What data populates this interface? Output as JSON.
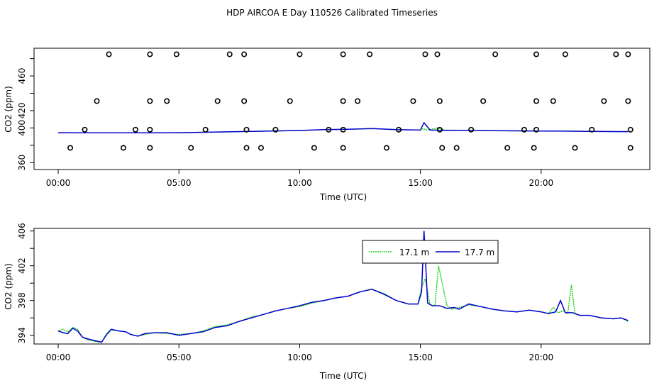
{
  "title": "HDP AIRCOA E  Day 110526  Calibrated Timeseries",
  "colors": {
    "green": "#00cc00",
    "blue": "#0000cc",
    "axis": "#000000"
  },
  "chart_data": [
    {
      "type": "line+scatter",
      "xlabel": "Time (UTC)",
      "ylabel": "CO2 (ppm)",
      "xlim": [
        -1.0,
        24.5
      ],
      "ylim": [
        352,
        492
      ],
      "xticks": [
        0,
        5,
        10,
        15,
        20
      ],
      "xtick_labels": [
        "00:00",
        "05:00",
        "10:00",
        "15:00",
        "20:00"
      ],
      "yticks": [
        360,
        380,
        400,
        420,
        440,
        460,
        480
      ],
      "ytick_labels": [
        "360",
        "",
        "400",
        "420",
        "",
        "460",
        ""
      ],
      "series": [
        {
          "color": "green",
          "kind": "line",
          "x": [
            0,
            1,
            2,
            3,
            4,
            5,
            6,
            7,
            8,
            9,
            10,
            11,
            12,
            13,
            14,
            15,
            15.1,
            15.3,
            15.7,
            16,
            17,
            18,
            19,
            20,
            21,
            22,
            23,
            23.6
          ],
          "y": [
            394.5,
            394.5,
            394.4,
            394.3,
            394.3,
            394.5,
            395,
            395.5,
            396,
            396.5,
            397,
            398,
            398.5,
            399.2,
            398,
            397.5,
            399,
            397.5,
            400,
            397.5,
            397.3,
            396.8,
            396.6,
            396.4,
            396.3,
            396,
            395.8,
            395.7
          ]
        },
        {
          "color": "blue",
          "kind": "line",
          "x": [
            0,
            1,
            2,
            3,
            4,
            5,
            6,
            7,
            8,
            9,
            10,
            11,
            12,
            13,
            14,
            15,
            15.15,
            15.4,
            16,
            17,
            18,
            19,
            20,
            21,
            22,
            23,
            23.6
          ],
          "y": [
            394.5,
            394.4,
            394.3,
            394.3,
            394.3,
            394.5,
            395,
            395.5,
            396,
            396.5,
            397,
            398,
            398.5,
            399.2,
            398,
            397.5,
            406,
            397.5,
            397.3,
            397.3,
            396.8,
            396.6,
            396.4,
            396.3,
            396,
            395.8,
            395.7
          ]
        },
        {
          "color": "black",
          "kind": "points",
          "x": [
            2.1,
            3.8,
            4.9,
            7.1,
            7.7,
            10.0,
            11.8,
            12.9,
            15.2,
            15.7,
            18.1,
            19.8,
            21.0,
            23.1,
            23.6,
            1.6,
            3.8,
            4.5,
            6.6,
            7.7,
            9.6,
            11.8,
            12.4,
            14.7,
            15.8,
            17.6,
            19.8,
            20.5,
            22.6,
            23.6,
            1.1,
            3.2,
            3.8,
            6.1,
            7.8,
            9.0,
            11.2,
            11.8,
            14.1,
            15.8,
            17.1,
            19.3,
            19.8,
            22.1,
            23.7,
            0.5,
            2.7,
            3.8,
            5.5,
            7.8,
            8.4,
            10.6,
            11.8,
            13.6,
            15.9,
            16.5,
            18.6,
            19.7,
            21.4,
            23.7
          ],
          "y": [
            485,
            485,
            485,
            485,
            485,
            485,
            485,
            485,
            485,
            485,
            485,
            485,
            485,
            485,
            485,
            431,
            431,
            431,
            431,
            431,
            431,
            431,
            431,
            431,
            431,
            431,
            431,
            431,
            431,
            431,
            398,
            398,
            398,
            398,
            398,
            398,
            398,
            398,
            398,
            398,
            398,
            398,
            398,
            398,
            398,
            377,
            377,
            377,
            377,
            377,
            377,
            377,
            377,
            377,
            377,
            377,
            377,
            377,
            377,
            377
          ]
        }
      ]
    },
    {
      "type": "line",
      "xlabel": "Time (UTC)",
      "ylabel": "CO2 (ppm)",
      "xlim": [
        -1.0,
        24.5
      ],
      "ylim": [
        393.0,
        406.3
      ],
      "xticks": [
        0,
        5,
        10,
        15,
        20
      ],
      "xtick_labels": [
        "00:00",
        "05:00",
        "10:00",
        "15:00",
        "20:00"
      ],
      "yticks": [
        394,
        396,
        398,
        400,
        402,
        404,
        406
      ],
      "ytick_labels": [
        "394",
        "",
        "398",
        "",
        "402",
        "",
        "406"
      ],
      "legend": {
        "position": "top-right",
        "items": [
          {
            "label": "17.1 m",
            "color": "green"
          },
          {
            "label": "17.7 m",
            "color": "blue"
          }
        ]
      },
      "series": [
        {
          "name": "17.1 m",
          "color": "green",
          "x": [
            0,
            0.2,
            0.4,
            0.6,
            0.8,
            1.0,
            1.2,
            1.5,
            1.8,
            2.0,
            2.2,
            2.5,
            2.8,
            3.0,
            3.3,
            3.6,
            4.0,
            4.5,
            5.0,
            5.5,
            6.0,
            6.5,
            7.0,
            7.5,
            8.0,
            8.5,
            9.0,
            9.5,
            10.0,
            10.5,
            11.0,
            11.5,
            12.0,
            12.5,
            13.0,
            13.5,
            14.0,
            14.5,
            14.9,
            15.05,
            15.2,
            15.4,
            15.6,
            15.75,
            15.9,
            16.1,
            16.3,
            16.6,
            17.0,
            17.5,
            18.0,
            18.5,
            19.0,
            19.5,
            20.0,
            20.3,
            20.5,
            20.7,
            20.9,
            21.1,
            21.25,
            21.4,
            21.6,
            22.0,
            22.5,
            23.0,
            23.3,
            23.6
          ],
          "y": [
            394.5,
            394.7,
            394.4,
            394.9,
            394.7,
            393.8,
            393.5,
            393.3,
            393.2,
            394.0,
            394.6,
            394.5,
            394.4,
            394.1,
            393.9,
            394.1,
            394.3,
            394.2,
            394.1,
            394.2,
            394.5,
            395.0,
            395.2,
            395.6,
            396.1,
            396.4,
            396.8,
            397.1,
            397.3,
            397.7,
            398.0,
            398.3,
            398.5,
            399.0,
            399.3,
            398.8,
            398.0,
            397.6,
            397.6,
            399.5,
            400.5,
            397.5,
            397.4,
            402.0,
            400.0,
            397.4,
            397.0,
            397.2,
            397.5,
            397.3,
            397.0,
            396.8,
            396.7,
            396.9,
            396.7,
            396.5,
            397.2,
            396.6,
            396.8,
            396.5,
            399.8,
            396.5,
            396.3,
            396.3,
            396.0,
            395.9,
            396.0,
            395.6
          ]
        },
        {
          "name": "17.7 m",
          "color": "blue",
          "x": [
            0,
            0.2,
            0.4,
            0.6,
            0.8,
            1.0,
            1.2,
            1.5,
            1.8,
            2.0,
            2.2,
            2.5,
            2.8,
            3.0,
            3.3,
            3.6,
            4.0,
            4.5,
            5.0,
            5.5,
            6.0,
            6.5,
            7.0,
            7.5,
            8.0,
            8.5,
            9.0,
            9.5,
            10.0,
            10.5,
            11.0,
            11.5,
            12.0,
            12.5,
            13.0,
            13.5,
            14.0,
            14.5,
            14.9,
            15.05,
            15.15,
            15.3,
            15.5,
            15.8,
            16.1,
            16.4,
            16.6,
            17.0,
            17.5,
            18.0,
            18.5,
            19.0,
            19.5,
            20.0,
            20.3,
            20.6,
            20.8,
            21.0,
            21.3,
            21.6,
            22.0,
            22.5,
            23.0,
            23.3,
            23.6
          ],
          "y": [
            394.5,
            394.3,
            394.2,
            394.8,
            394.5,
            393.8,
            393.6,
            393.4,
            393.2,
            394.1,
            394.7,
            394.5,
            394.4,
            394.1,
            393.9,
            394.2,
            394.3,
            394.3,
            394.0,
            394.2,
            394.4,
            394.9,
            395.1,
            395.6,
            396.0,
            396.4,
            396.8,
            397.1,
            397.4,
            397.8,
            398.0,
            398.3,
            398.5,
            399.0,
            399.3,
            398.7,
            398.0,
            397.6,
            397.6,
            399.0,
            406.0,
            397.7,
            397.4,
            397.4,
            397.1,
            397.2,
            397.0,
            397.6,
            397.3,
            397.0,
            396.8,
            396.7,
            396.9,
            396.7,
            396.5,
            396.7,
            398.0,
            396.6,
            396.6,
            396.3,
            396.3,
            396.0,
            395.9,
            396.0,
            395.7
          ]
        }
      ]
    }
  ]
}
